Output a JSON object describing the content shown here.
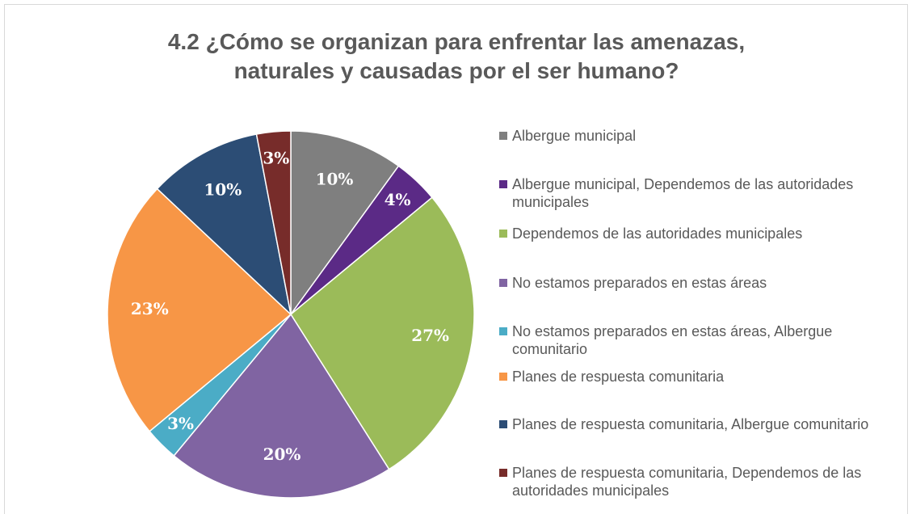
{
  "chart_data": {
    "type": "pie",
    "title": "4.2 ¿Cómo se organizan para enfrentar las amenazas, naturales y causadas por el ser humano?",
    "categories": [
      "Albergue municipal",
      "Albergue municipal, Dependemos de las autoridades municipales",
      "Dependemos de las autoridades municipales",
      "No estamos preparados en estas áreas",
      "No estamos preparados en estas áreas, Albergue comunitario",
      "Planes de respuesta comunitaria",
      "Planes de respuesta comunitaria, Albergue comunitario",
      "Planes de respuesta comunitaria, Dependemos de las autoridades municipales"
    ],
    "values": [
      10,
      4,
      27,
      20,
      3,
      23,
      10,
      3
    ],
    "value_labels": [
      "10%",
      "4%",
      "27%",
      "20%",
      "3%",
      "23%",
      "10%",
      "3%"
    ],
    "colors": [
      "#7f7f7f",
      "#5b2a86",
      "#9bbb59",
      "#8064a2",
      "#4bacc6",
      "#f79646",
      "#2c4d75",
      "#772c2a"
    ],
    "legend": "right"
  }
}
